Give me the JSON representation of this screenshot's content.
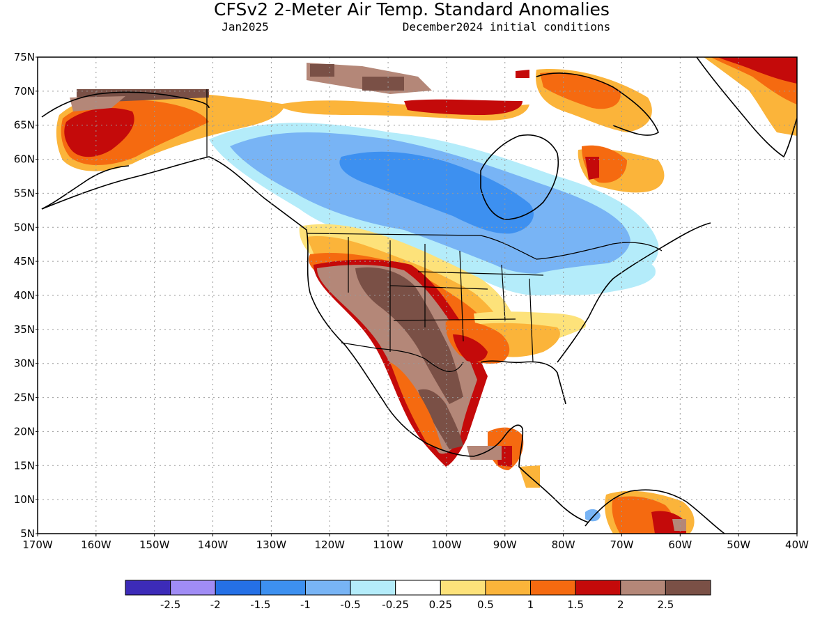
{
  "header": {
    "title": "CFSv2 2-Meter Air Temp. Standard Anomalies",
    "month": "Jan2025",
    "init": "December2024 initial conditions"
  },
  "map": {
    "lat_labels": [
      "75N",
      "70N",
      "65N",
      "60N",
      "55N",
      "50N",
      "45N",
      "40N",
      "35N",
      "30N",
      "25N",
      "20N",
      "15N",
      "10N",
      "5N"
    ],
    "lon_labels": [
      "170W",
      "160W",
      "150W",
      "140W",
      "130W",
      "120W",
      "110W",
      "100W",
      "90W",
      "80W",
      "70W",
      "60W",
      "50W",
      "40W"
    ],
    "lat_range": [
      5,
      75
    ],
    "lon_range": [
      -170,
      -40
    ],
    "grid": "dotted"
  },
  "legend": {
    "colors": [
      "#3c2bb8",
      "#a08cf5",
      "#2570e6",
      "#3d90f0",
      "#78b4f5",
      "#b4ecfa",
      "#ffffff",
      "#fde27a",
      "#fbb43a",
      "#f56a10",
      "#c40a0a",
      "#b48778",
      "#7a5046"
    ],
    "labels": [
      "-2.5",
      "-2",
      "-1.5",
      "-1",
      "-0.5",
      "-0.25",
      "0.25",
      "0.5",
      "1",
      "1.5",
      "2",
      "2.5"
    ]
  }
}
